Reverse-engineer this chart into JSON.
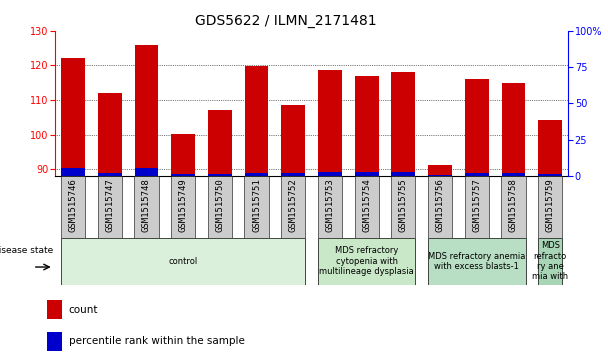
{
  "title": "GDS5622 / ILMN_2171481",
  "samples": [
    "GSM1515746",
    "GSM1515747",
    "GSM1515748",
    "GSM1515749",
    "GSM1515750",
    "GSM1515751",
    "GSM1515752",
    "GSM1515753",
    "GSM1515754",
    "GSM1515755",
    "GSM1515756",
    "GSM1515757",
    "GSM1515758",
    "GSM1515759"
  ],
  "counts": [
    122.2,
    112.0,
    125.8,
    100.2,
    107.0,
    119.8,
    108.5,
    118.8,
    116.8,
    118.0,
    91.2,
    116.0,
    115.0,
    104.2
  ],
  "percentile_ranks": [
    5.5,
    2.0,
    5.5,
    1.5,
    1.5,
    2.0,
    2.0,
    3.0,
    3.0,
    3.0,
    0.5,
    2.0,
    2.0,
    1.2
  ],
  "ylim_left": [
    88,
    130
  ],
  "ylim_right": [
    0,
    100
  ],
  "yticks_left": [
    90,
    100,
    110,
    120,
    130
  ],
  "yticks_right": [
    0,
    25,
    50,
    75,
    100
  ],
  "ytick_labels_right": [
    "0",
    "25",
    "50",
    "75",
    "100%"
  ],
  "bar_color": "#cc0000",
  "blue_color": "#0000cc",
  "bar_width": 0.65,
  "disease_groups": [
    {
      "label": "control",
      "start": 0,
      "end": 7,
      "color": "#daf0da"
    },
    {
      "label": "MDS refractory\ncytopenia with\nmultilineage dysplasia",
      "start": 7,
      "end": 10,
      "color": "#c8e8c8"
    },
    {
      "label": "MDS refractory anemia\nwith excess blasts-1",
      "start": 10,
      "end": 13,
      "color": "#b8dfc4"
    },
    {
      "label": "MDS\nrefracto\nry ane\nmia with",
      "start": 13,
      "end": 14,
      "color": "#a8d5b5"
    }
  ],
  "legend_items": [
    {
      "label": "count",
      "color": "#cc0000"
    },
    {
      "label": "percentile rank within the sample",
      "color": "#0000cc"
    }
  ],
  "title_fontsize": 10,
  "tick_fontsize": 7,
  "label_fontsize": 7.5,
  "disease_label_fontsize": 6.0,
  "sample_fontsize": 6.5
}
